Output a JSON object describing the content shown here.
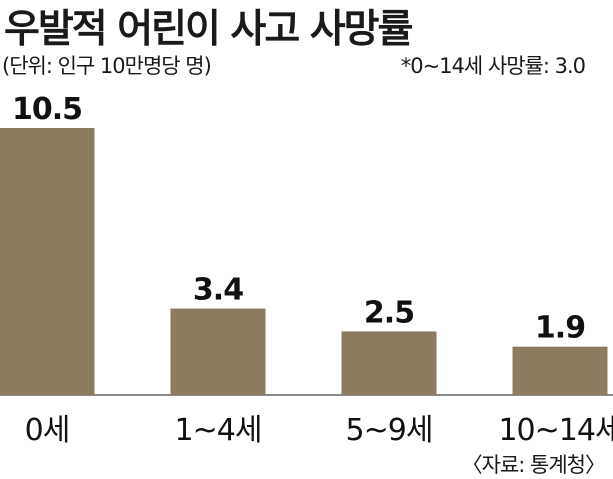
{
  "title": "우발적 어린이 사고 사망률",
  "unit_note": "(단위: 인구 10만명당 명)",
  "total_note": "*0~14세 사망률: 3.0",
  "source_note": "〈자료: 통계청〉",
  "colors": {
    "bar": "#8b7b61",
    "axis": "#444444",
    "text": "#111111"
  },
  "chart_data": {
    "type": "bar",
    "title": "우발적 어린이 사고 사망률",
    "categories": [
      "0세",
      "1~4세",
      "5~9세",
      "10~14세"
    ],
    "values": [
      10.5,
      3.4,
      2.5,
      1.9
    ],
    "value_labels": [
      "10.5",
      "3.4",
      "2.5",
      "1.9"
    ],
    "xlabel": "",
    "ylabel": "",
    "ylim": [
      0,
      10.5
    ],
    "grid": false,
    "legend": "none"
  }
}
